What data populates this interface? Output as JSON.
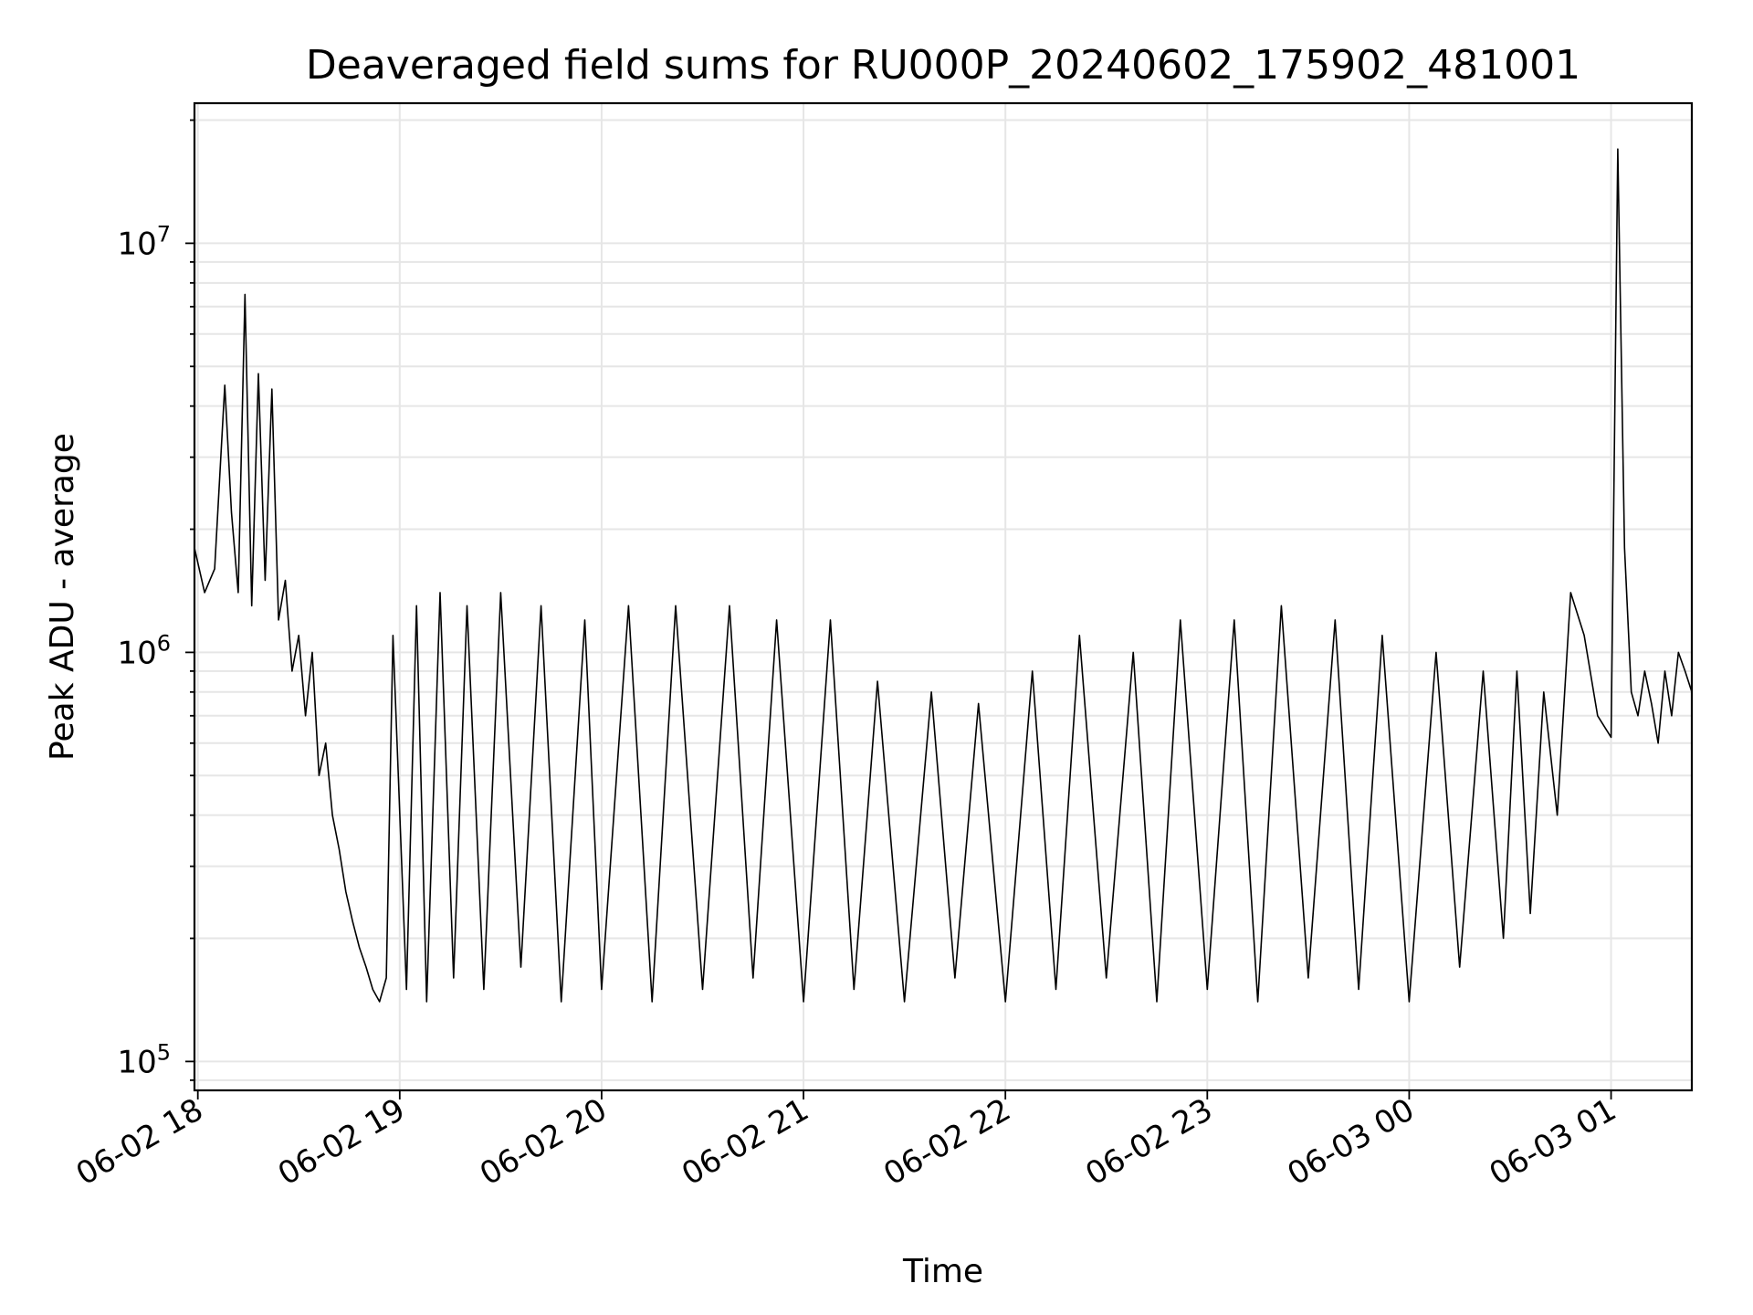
{
  "chart_data": {
    "type": "line",
    "title": "Deaveraged field sums for RU000P_20240602_175902_481001",
    "xlabel": "Time",
    "ylabel": "Peak ADU - average",
    "y_scale": "log",
    "ylim": [
      85000,
      22000000
    ],
    "xlim": [
      "2024-06-02 17:59",
      "2024-06-03 01:24"
    ],
    "grid": true,
    "line_color": "#000000",
    "x_ticks": [
      {
        "time": "2024-06-02 18:00",
        "label": "06-02 18"
      },
      {
        "time": "2024-06-02 19:00",
        "label": "06-02 19"
      },
      {
        "time": "2024-06-02 20:00",
        "label": "06-02 20"
      },
      {
        "time": "2024-06-02 21:00",
        "label": "06-02 21"
      },
      {
        "time": "2024-06-02 22:00",
        "label": "06-02 22"
      },
      {
        "time": "2024-06-02 23:00",
        "label": "06-02 23"
      },
      {
        "time": "2024-06-03 00:00",
        "label": "06-03 00"
      },
      {
        "time": "2024-06-03 01:00",
        "label": "06-03 01"
      }
    ],
    "y_ticks": [
      {
        "value": 100000,
        "base": "10",
        "exp": "5"
      },
      {
        "value": 1000000,
        "base": "10",
        "exp": "6"
      },
      {
        "value": 10000000,
        "base": "10",
        "exp": "7"
      }
    ],
    "series": [
      {
        "x": [
          "2024-06-02 17:59",
          "2024-06-02 18:02",
          "2024-06-02 18:05",
          "2024-06-02 18:08",
          "2024-06-02 18:10",
          "2024-06-02 18:12",
          "2024-06-02 18:14",
          "2024-06-02 18:16",
          "2024-06-02 18:18",
          "2024-06-02 18:20",
          "2024-06-02 18:22",
          "2024-06-02 18:24",
          "2024-06-02 18:26",
          "2024-06-02 18:28",
          "2024-06-02 18:30",
          "2024-06-02 18:32",
          "2024-06-02 18:34",
          "2024-06-02 18:36",
          "2024-06-02 18:38",
          "2024-06-02 18:40",
          "2024-06-02 18:42",
          "2024-06-02 18:44",
          "2024-06-02 18:46",
          "2024-06-02 18:48",
          "2024-06-02 18:50",
          "2024-06-02 18:52",
          "2024-06-02 18:54",
          "2024-06-02 18:56",
          "2024-06-02 18:58",
          "2024-06-02 19:02",
          "2024-06-02 19:05",
          "2024-06-02 19:08",
          "2024-06-02 19:12",
          "2024-06-02 19:16",
          "2024-06-02 19:20",
          "2024-06-02 19:25",
          "2024-06-02 19:30",
          "2024-06-02 19:36",
          "2024-06-02 19:42",
          "2024-06-02 19:48",
          "2024-06-02 19:55",
          "2024-06-02 20:00",
          "2024-06-02 20:08",
          "2024-06-02 20:15",
          "2024-06-02 20:22",
          "2024-06-02 20:30",
          "2024-06-02 20:38",
          "2024-06-02 20:45",
          "2024-06-02 20:52",
          "2024-06-02 21:00",
          "2024-06-02 21:08",
          "2024-06-02 21:15",
          "2024-06-02 21:22",
          "2024-06-02 21:30",
          "2024-06-02 21:38",
          "2024-06-02 21:45",
          "2024-06-02 21:52",
          "2024-06-02 22:00",
          "2024-06-02 22:08",
          "2024-06-02 22:15",
          "2024-06-02 22:22",
          "2024-06-02 22:30",
          "2024-06-02 22:38",
          "2024-06-02 22:45",
          "2024-06-02 22:52",
          "2024-06-02 23:00",
          "2024-06-02 23:08",
          "2024-06-02 23:15",
          "2024-06-02 23:22",
          "2024-06-02 23:30",
          "2024-06-02 23:38",
          "2024-06-02 23:45",
          "2024-06-02 23:52",
          "2024-06-03 00:00",
          "2024-06-03 00:08",
          "2024-06-03 00:15",
          "2024-06-03 00:22",
          "2024-06-03 00:28",
          "2024-06-03 00:32",
          "2024-06-03 00:36",
          "2024-06-03 00:40",
          "2024-06-03 00:44",
          "2024-06-03 00:48",
          "2024-06-03 00:52",
          "2024-06-03 00:56",
          "2024-06-03 01:00",
          "2024-06-03 01:02",
          "2024-06-03 01:04",
          "2024-06-03 01:06",
          "2024-06-03 01:08",
          "2024-06-03 01:10",
          "2024-06-03 01:12",
          "2024-06-03 01:14",
          "2024-06-03 01:16",
          "2024-06-03 01:18",
          "2024-06-03 01:20",
          "2024-06-03 01:22",
          "2024-06-03 01:24"
        ],
        "y": [
          1800000,
          1400000,
          1600000,
          4500000,
          2200000,
          1400000,
          7500000,
          1300000,
          4800000,
          1500000,
          4400000,
          1200000,
          1500000,
          900000,
          1100000,
          700000,
          1000000,
          500000,
          600000,
          400000,
          330000,
          260000,
          220000,
          190000,
          170000,
          150000,
          140000,
          160000,
          1100000,
          150000,
          1300000,
          140000,
          1400000,
          160000,
          1300000,
          150000,
          1400000,
          170000,
          1300000,
          140000,
          1200000,
          150000,
          1300000,
          140000,
          1300000,
          150000,
          1300000,
          160000,
          1200000,
          140000,
          1200000,
          150000,
          850000,
          140000,
          800000,
          160000,
          750000,
          140000,
          900000,
          150000,
          1100000,
          160000,
          1000000,
          140000,
          1200000,
          150000,
          1200000,
          140000,
          1300000,
          160000,
          1200000,
          150000,
          1100000,
          140000,
          1000000,
          170000,
          900000,
          200000,
          900000,
          230000,
          800000,
          400000,
          1400000,
          1100000,
          700000,
          620000,
          17000000,
          1800000,
          800000,
          700000,
          900000,
          750000,
          600000,
          900000,
          700000,
          1000000,
          900000,
          800000
        ]
      }
    ]
  }
}
